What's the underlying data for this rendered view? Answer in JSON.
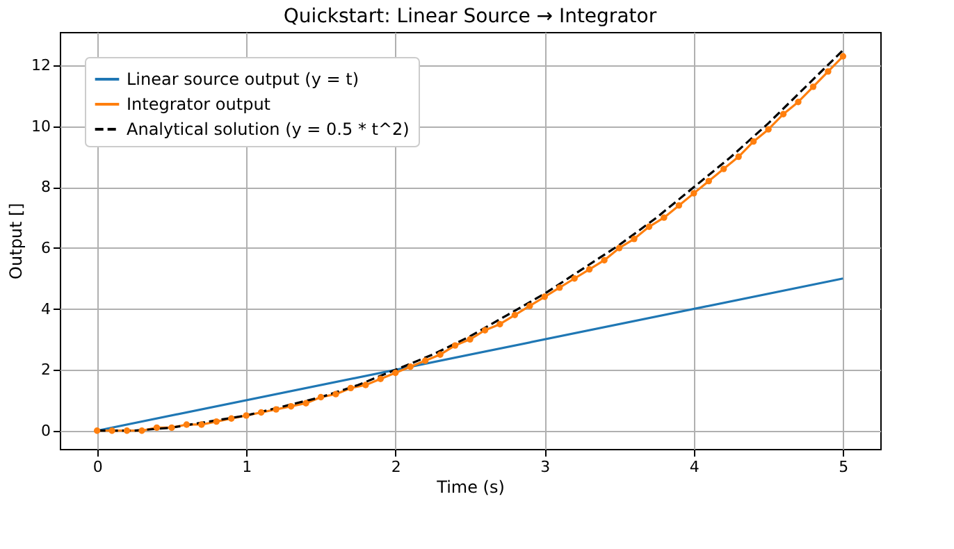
{
  "chart_data": {
    "type": "line",
    "title": "Quickstart: Linear Source → Integrator",
    "xlabel": "Time (s)",
    "ylabel": "Output []",
    "xlim": [
      -0.25,
      5.25
    ],
    "ylim": [
      -0.6,
      13.1
    ],
    "xticks": [
      0,
      1,
      2,
      3,
      4,
      5
    ],
    "yticks": [
      0,
      2,
      4,
      6,
      8,
      10,
      12
    ],
    "grid": true,
    "legend": "top left",
    "series": [
      {
        "name": "Linear source output (y = t)",
        "color": "#1f77b4",
        "marker": "none",
        "line_style": "solid",
        "x": [
          0,
          5
        ],
        "values": [
          0,
          5
        ]
      },
      {
        "name": "Integrator output",
        "color": "#ff7f0e",
        "marker": "circle",
        "line_style": "solid",
        "x": [
          0,
          0.1,
          0.2,
          0.3,
          0.4,
          0.5,
          0.6,
          0.7,
          0.8,
          0.9,
          1.0,
          1.1,
          1.2,
          1.3,
          1.4,
          1.5,
          1.6,
          1.7,
          1.8,
          1.9,
          2.0,
          2.1,
          2.2,
          2.3,
          2.4,
          2.5,
          2.6,
          2.7,
          2.8,
          2.9,
          3.0,
          3.1,
          3.2,
          3.3,
          3.4,
          3.5,
          3.6,
          3.7,
          3.8,
          3.9,
          4.0,
          4.1,
          4.2,
          4.3,
          4.4,
          4.5,
          4.6,
          4.7,
          4.8,
          4.9,
          5.0
        ],
        "values": [
          0,
          0,
          0,
          0,
          0.1,
          0.1,
          0.2,
          0.2,
          0.3,
          0.4,
          0.5,
          0.6,
          0.7,
          0.8,
          0.9,
          1.1,
          1.2,
          1.4,
          1.5,
          1.7,
          1.9,
          2.1,
          2.3,
          2.5,
          2.8,
          3.0,
          3.3,
          3.5,
          3.8,
          4.1,
          4.4,
          4.7,
          5.0,
          5.3,
          5.6,
          6.0,
          6.3,
          6.7,
          7.0,
          7.4,
          7.8,
          8.2,
          8.6,
          9.0,
          9.5,
          9.9,
          10.4,
          10.8,
          11.3,
          11.8,
          12.3
        ]
      },
      {
        "name": "Analytical solution (y = 0.5 * t^2)",
        "color": "#000000",
        "marker": "none",
        "line_style": "dashed",
        "x": [
          0,
          0.25,
          0.5,
          0.75,
          1.0,
          1.25,
          1.5,
          1.75,
          2.0,
          2.25,
          2.5,
          2.75,
          3.0,
          3.25,
          3.5,
          3.75,
          4.0,
          4.25,
          4.5,
          4.75,
          5.0
        ],
        "values": [
          0,
          0,
          0.1,
          0.3,
          0.5,
          0.8,
          1.1,
          1.5,
          2.0,
          2.5,
          3.1,
          3.8,
          4.5,
          5.3,
          6.1,
          7.0,
          8.0,
          9.0,
          10.1,
          11.3,
          12.5
        ]
      }
    ]
  }
}
